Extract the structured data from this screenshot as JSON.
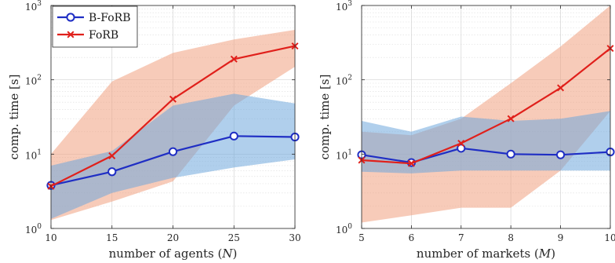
{
  "chart_data": [
    {
      "type": "line",
      "xlabel": "number of agents (",
      "xlabel_var": "N",
      "xlabel_close": ")",
      "ylabel": "comp. time [s]",
      "yscale": "log",
      "ylim": [
        1,
        1000
      ],
      "xlim": [
        10,
        30
      ],
      "x": [
        10,
        15,
        20,
        25,
        30
      ],
      "x_ticks": [
        "10",
        "15",
        "20",
        "25",
        "30"
      ],
      "y_ticks": [
        {
          "base": "10",
          "exp": "0"
        },
        {
          "base": "10",
          "exp": "1"
        },
        {
          "base": "10",
          "exp": "2"
        },
        {
          "base": "10",
          "exp": "3"
        }
      ],
      "grid": true,
      "legend": "top-left",
      "series": [
        {
          "name": "B-FoRB",
          "color": "#1f2ec4",
          "marker": "circle",
          "values": [
            3.8,
            5.8,
            10.8,
            17.5,
            17
          ],
          "band_low": [
            1.35,
            3.0,
            4.8,
            6.6,
            8.5
          ],
          "band_high": [
            7.0,
            11.0,
            45,
            65,
            48
          ],
          "band_color": "#6fa8dc"
        },
        {
          "name": "FoRB",
          "color": "#e0201b",
          "marker": "x",
          "values": [
            3.7,
            9.5,
            55,
            190,
            285
          ],
          "band_low": [
            1.3,
            2.3,
            4.3,
            45,
            150
          ],
          "band_high": [
            10,
            95,
            230,
            350,
            470
          ],
          "band_color": "#f0a080"
        }
      ]
    },
    {
      "type": "line",
      "xlabel": "number of markets (",
      "xlabel_var": "M",
      "xlabel_close": ")",
      "ylabel": "comp. time [s]",
      "yscale": "log",
      "ylim": [
        1,
        1000
      ],
      "xlim": [
        5,
        10
      ],
      "x": [
        5,
        6,
        7,
        8,
        9,
        10
      ],
      "x_ticks": [
        "5",
        "6",
        "7",
        "8",
        "9",
        "10"
      ],
      "y_ticks": [
        {
          "base": "10",
          "exp": "0"
        },
        {
          "base": "10",
          "exp": "1"
        },
        {
          "base": "10",
          "exp": "2"
        },
        {
          "base": "10",
          "exp": "3"
        }
      ],
      "grid": true,
      "legend": "none",
      "series": [
        {
          "name": "B-FoRB",
          "color": "#1f2ec4",
          "marker": "circle",
          "values": [
            9.8,
            7.7,
            12,
            10,
            9.8,
            10.7
          ],
          "band_low": [
            5.8,
            5.5,
            6.0,
            6.0,
            6.0,
            6.0
          ],
          "band_high": [
            28,
            20,
            32,
            28,
            30,
            38
          ],
          "band_color": "#6fa8dc"
        },
        {
          "name": "FoRB",
          "color": "#e0201b",
          "marker": "x",
          "values": [
            8.3,
            7.5,
            14,
            30,
            78,
            265
          ],
          "band_low": [
            1.2,
            1.5,
            1.9,
            1.9,
            6.0,
            38
          ],
          "band_high": [
            20,
            18,
            30,
            90,
            280,
            1000
          ],
          "band_color": "#f0a080"
        }
      ]
    }
  ]
}
